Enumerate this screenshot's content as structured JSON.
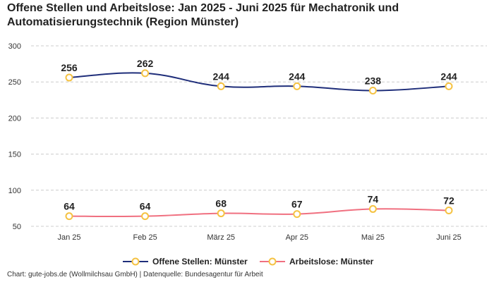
{
  "chart_data": {
    "type": "line",
    "title": "Offene Stellen und Arbeitslose: Jan 2025 - Juni 2025 für Mechatronik und Automatisierungstechnik (Region Münster)",
    "categories": [
      "Jan 25",
      "Feb 25",
      "März 25",
      "Apr 25",
      "Mai 25",
      "Juni 25"
    ],
    "series": [
      {
        "name": "Offene Stellen: Münster",
        "values": [
          256,
          262,
          244,
          244,
          238,
          244
        ],
        "color": "#1f2e7a"
      },
      {
        "name": "Arbeitslose: Münster",
        "values": [
          64,
          64,
          68,
          67,
          74,
          72
        ],
        "color": "#f07080"
      }
    ],
    "marker_color": "#f5c242",
    "ylim": [
      50,
      300
    ],
    "yticks": [
      50,
      100,
      150,
      200,
      250,
      300
    ],
    "grid": true,
    "legend": "bottom-center",
    "xlabel": "",
    "ylabel": ""
  },
  "source_note": "Chart: gute-jobs.de (Wollmilchsau GmbH) | Datenquelle: Bundesagentur für Arbeit"
}
